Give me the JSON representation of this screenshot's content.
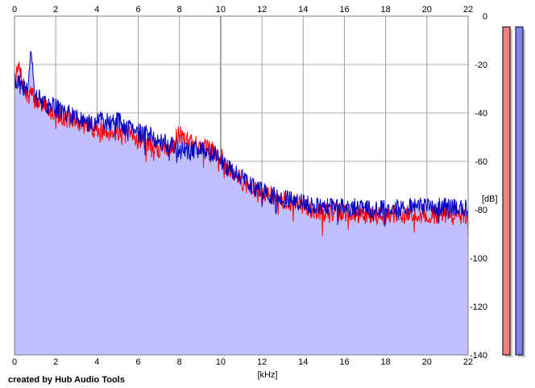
{
  "chart_data": {
    "type": "area",
    "xlabel": "[kHz]",
    "ylabel": "[dB]",
    "xlim": [
      0,
      22
    ],
    "ylim": [
      -140,
      0
    ],
    "x_ticks": [
      "0",
      "2",
      "4",
      "6",
      "8",
      "10",
      "12",
      "14",
      "16",
      "18",
      "20",
      "22"
    ],
    "y_ticks": [
      "0",
      "-20",
      "-40",
      "-60",
      "-80",
      "-100",
      "-120",
      "-140"
    ],
    "grid": true,
    "series": [
      {
        "color": "#ff0000",
        "x": [
          0,
          0.2,
          0.4,
          0.6,
          0.8,
          1,
          1.5,
          2,
          2.5,
          3,
          3.5,
          4,
          4.5,
          5,
          5.5,
          6,
          6.5,
          7,
          7.5,
          8,
          8.5,
          9,
          9.5,
          10,
          10.5,
          11,
          11.5,
          12,
          12.5,
          13,
          13.5,
          14,
          14.5,
          15,
          16,
          17,
          18,
          19,
          20,
          21,
          22
        ],
        "y": [
          -28,
          -21,
          -28,
          -33,
          -32,
          -35,
          -37,
          -40,
          -42,
          -44,
          -45,
          -47,
          -48,
          -47,
          -49,
          -51,
          -52,
          -55,
          -54,
          -49,
          -51,
          -54,
          -55,
          -57,
          -64,
          -68,
          -71,
          -74,
          -74,
          -76,
          -77,
          -79,
          -80,
          -81,
          -81,
          -82,
          -82,
          -82,
          -82,
          -82,
          -84
        ]
      },
      {
        "color": "#0000c0",
        "x": [
          0,
          0.2,
          0.4,
          0.6,
          0.8,
          1,
          1.5,
          2,
          2.5,
          3,
          3.5,
          4,
          4.5,
          5,
          5.5,
          6,
          6.5,
          7,
          7.5,
          8,
          8.5,
          9,
          9.5,
          10,
          10.5,
          11,
          11.5,
          12,
          12.5,
          13,
          13.5,
          14,
          14.5,
          15,
          16,
          17,
          18,
          19,
          20,
          21,
          22
        ],
        "y": [
          -26,
          -28,
          -30,
          -30,
          -14,
          -33,
          -36,
          -38,
          -40,
          -42,
          -45,
          -43,
          -44,
          -43,
          -47,
          -48,
          -49,
          -52,
          -53,
          -55,
          -56,
          -55,
          -56,
          -59,
          -64,
          -67,
          -70,
          -72,
          -74,
          -75,
          -76,
          -77,
          -78,
          -78,
          -79,
          -79,
          -80,
          -79,
          -79,
          -79,
          -79
        ]
      }
    ]
  },
  "meters": [
    {
      "color": "#f08080",
      "level": 0.98
    },
    {
      "color": "#8080f0",
      "level": 0.98
    }
  ],
  "credit": "created by Hub Audio Tools"
}
